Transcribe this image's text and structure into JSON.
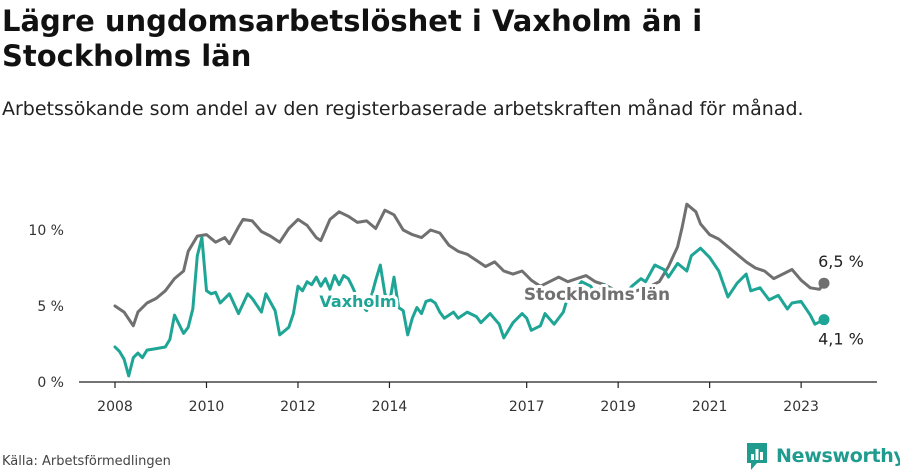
{
  "title": "Lägre ungdomsarbetslöshet i Vaxholm än i Stockholms län",
  "subtitle": "Arbetssökande som andel av den registerbaserade arbetskraften månad för månad.",
  "source": "Källa: Arbetsförmedlingen",
  "brand": {
    "name": "Newsworthy",
    "logo_icon": "bar-chart-logo-icon"
  },
  "colors": {
    "stockholm": "#707070",
    "vaxholm": "#1fa595",
    "brand": "#1f9c8e"
  },
  "chart_data": {
    "type": "line",
    "title": "Lägre ungdomsarbetslöshet i Vaxholm än i Stockholms län",
    "xlabel": "",
    "ylabel": "",
    "xlim": [
      2008,
      2024.5
    ],
    "ylim": [
      0,
      13
    ],
    "x_ticks": [
      2008,
      2010,
      2012,
      2014,
      2017,
      2019,
      2021,
      2023
    ],
    "x_tick_labels": [
      "2008",
      "2010",
      "2012",
      "2014",
      "2017",
      "2019",
      "2021",
      "2023"
    ],
    "y_ticks": [
      0,
      5,
      10
    ],
    "y_tick_labels": [
      "0 %",
      "5 %",
      "10 %"
    ],
    "grid": false,
    "series": [
      {
        "name": "Stockholms län",
        "label": "Stockholms län",
        "end_label": "6,5 %",
        "points": [
          [
            2008.0,
            5.0
          ],
          [
            2008.2,
            4.6
          ],
          [
            2008.4,
            3.7
          ],
          [
            2008.5,
            4.6
          ],
          [
            2008.7,
            5.2
          ],
          [
            2008.9,
            5.5
          ],
          [
            2009.1,
            6.0
          ],
          [
            2009.3,
            6.8
          ],
          [
            2009.5,
            7.3
          ],
          [
            2009.6,
            8.6
          ],
          [
            2009.8,
            9.6
          ],
          [
            2010.0,
            9.7
          ],
          [
            2010.2,
            9.2
          ],
          [
            2010.4,
            9.5
          ],
          [
            2010.5,
            9.1
          ],
          [
            2010.7,
            10.2
          ],
          [
            2010.8,
            10.7
          ],
          [
            2011.0,
            10.6
          ],
          [
            2011.2,
            9.9
          ],
          [
            2011.4,
            9.6
          ],
          [
            2011.6,
            9.2
          ],
          [
            2011.8,
            10.1
          ],
          [
            2012.0,
            10.7
          ],
          [
            2012.2,
            10.3
          ],
          [
            2012.4,
            9.5
          ],
          [
            2012.5,
            9.3
          ],
          [
            2012.7,
            10.7
          ],
          [
            2012.9,
            11.2
          ],
          [
            2013.1,
            10.9
          ],
          [
            2013.3,
            10.5
          ],
          [
            2013.5,
            10.6
          ],
          [
            2013.7,
            10.1
          ],
          [
            2013.9,
            11.3
          ],
          [
            2014.1,
            11.0
          ],
          [
            2014.3,
            10.0
          ],
          [
            2014.5,
            9.7
          ],
          [
            2014.7,
            9.5
          ],
          [
            2014.9,
            10.0
          ],
          [
            2015.1,
            9.8
          ],
          [
            2015.3,
            9.0
          ],
          [
            2015.5,
            8.6
          ],
          [
            2015.7,
            8.4
          ],
          [
            2015.9,
            8.0
          ],
          [
            2016.1,
            7.6
          ],
          [
            2016.3,
            7.9
          ],
          [
            2016.5,
            7.3
          ],
          [
            2016.7,
            7.1
          ],
          [
            2016.9,
            7.3
          ],
          [
            2017.1,
            6.7
          ],
          [
            2017.3,
            6.3
          ],
          [
            2017.5,
            6.6
          ],
          [
            2017.7,
            6.9
          ],
          [
            2017.9,
            6.6
          ],
          [
            2018.1,
            6.8
          ],
          [
            2018.3,
            7.0
          ],
          [
            2018.5,
            6.6
          ],
          [
            2018.7,
            6.4
          ],
          [
            2018.9,
            6.1
          ],
          [
            2019.1,
            6.0
          ],
          [
            2019.3,
            5.9
          ],
          [
            2019.5,
            6.1
          ],
          [
            2019.7,
            6.3
          ],
          [
            2019.9,
            6.6
          ],
          [
            2020.1,
            7.6
          ],
          [
            2020.3,
            8.9
          ],
          [
            2020.4,
            10.2
          ],
          [
            2020.5,
            11.7
          ],
          [
            2020.7,
            11.2
          ],
          [
            2020.8,
            10.4
          ],
          [
            2021.0,
            9.7
          ],
          [
            2021.2,
            9.4
          ],
          [
            2021.4,
            8.9
          ],
          [
            2021.6,
            8.4
          ],
          [
            2021.8,
            7.9
          ],
          [
            2022.0,
            7.5
          ],
          [
            2022.2,
            7.3
          ],
          [
            2022.4,
            6.8
          ],
          [
            2022.6,
            7.1
          ],
          [
            2022.8,
            7.4
          ],
          [
            2023.0,
            6.7
          ],
          [
            2023.2,
            6.2
          ],
          [
            2023.4,
            6.1
          ],
          [
            2023.5,
            6.5
          ]
        ]
      },
      {
        "name": "Vaxholm",
        "label": "Vaxholm",
        "end_label": "4,1 %",
        "points": [
          [
            2008.0,
            2.3
          ],
          [
            2008.1,
            2.0
          ],
          [
            2008.2,
            1.5
          ],
          [
            2008.3,
            0.4
          ],
          [
            2008.4,
            1.6
          ],
          [
            2008.5,
            1.9
          ],
          [
            2008.6,
            1.6
          ],
          [
            2008.7,
            2.1
          ],
          [
            2008.9,
            2.2
          ],
          [
            2009.1,
            2.3
          ],
          [
            2009.2,
            2.8
          ],
          [
            2009.3,
            4.4
          ],
          [
            2009.5,
            3.2
          ],
          [
            2009.6,
            3.6
          ],
          [
            2009.7,
            4.8
          ],
          [
            2009.8,
            8.3
          ],
          [
            2009.9,
            9.5
          ],
          [
            2010.0,
            6.0
          ],
          [
            2010.1,
            5.8
          ],
          [
            2010.2,
            5.9
          ],
          [
            2010.3,
            5.2
          ],
          [
            2010.5,
            5.8
          ],
          [
            2010.7,
            4.5
          ],
          [
            2010.9,
            5.8
          ],
          [
            2011.0,
            5.5
          ],
          [
            2011.2,
            4.6
          ],
          [
            2011.3,
            5.8
          ],
          [
            2011.5,
            4.7
          ],
          [
            2011.6,
            3.1
          ],
          [
            2011.8,
            3.6
          ],
          [
            2011.9,
            4.5
          ],
          [
            2012.0,
            6.3
          ],
          [
            2012.1,
            6.0
          ],
          [
            2012.2,
            6.6
          ],
          [
            2012.3,
            6.4
          ],
          [
            2012.4,
            6.9
          ],
          [
            2012.5,
            6.3
          ],
          [
            2012.6,
            6.8
          ],
          [
            2012.7,
            6.1
          ],
          [
            2012.8,
            7.0
          ],
          [
            2012.9,
            6.4
          ],
          [
            2013.0,
            7.0
          ],
          [
            2013.1,
            6.8
          ],
          [
            2013.2,
            6.2
          ],
          [
            2013.3,
            5.5
          ],
          [
            2013.4,
            5.0
          ],
          [
            2013.5,
            4.7
          ],
          [
            2013.6,
            5.6
          ],
          [
            2013.7,
            6.7
          ],
          [
            2013.8,
            7.7
          ],
          [
            2013.9,
            5.8
          ],
          [
            2014.0,
            5.2
          ],
          [
            2014.1,
            6.9
          ],
          [
            2014.2,
            4.9
          ],
          [
            2014.3,
            4.7
          ],
          [
            2014.4,
            3.1
          ],
          [
            2014.5,
            4.2
          ],
          [
            2014.6,
            4.9
          ],
          [
            2014.7,
            4.5
          ],
          [
            2014.8,
            5.3
          ],
          [
            2014.9,
            5.4
          ],
          [
            2015.0,
            5.2
          ],
          [
            2015.1,
            4.6
          ],
          [
            2015.2,
            4.2
          ],
          [
            2015.4,
            4.6
          ],
          [
            2015.5,
            4.2
          ],
          [
            2015.7,
            4.6
          ],
          [
            2015.9,
            4.3
          ],
          [
            2016.0,
            3.9
          ],
          [
            2016.2,
            4.5
          ],
          [
            2016.4,
            3.8
          ],
          [
            2016.5,
            2.9
          ],
          [
            2016.7,
            3.9
          ],
          [
            2016.9,
            4.5
          ],
          [
            2017.0,
            4.2
          ],
          [
            2017.1,
            3.4
          ],
          [
            2017.3,
            3.7
          ],
          [
            2017.4,
            4.5
          ],
          [
            2017.6,
            3.8
          ],
          [
            2017.8,
            4.6
          ],
          [
            2017.9,
            5.6
          ],
          [
            2018.0,
            5.8
          ],
          [
            2018.2,
            6.6
          ],
          [
            2018.4,
            6.3
          ],
          [
            2018.5,
            5.8
          ],
          [
            2018.7,
            6.4
          ],
          [
            2018.9,
            5.9
          ],
          [
            2019.1,
            5.6
          ],
          [
            2019.3,
            6.3
          ],
          [
            2019.5,
            6.8
          ],
          [
            2019.6,
            6.6
          ],
          [
            2019.8,
            7.7
          ],
          [
            2020.0,
            7.4
          ],
          [
            2020.1,
            6.9
          ],
          [
            2020.3,
            7.8
          ],
          [
            2020.5,
            7.3
          ],
          [
            2020.6,
            8.3
          ],
          [
            2020.8,
            8.8
          ],
          [
            2021.0,
            8.2
          ],
          [
            2021.2,
            7.3
          ],
          [
            2021.4,
            5.6
          ],
          [
            2021.6,
            6.5
          ],
          [
            2021.8,
            7.1
          ],
          [
            2021.9,
            6.0
          ],
          [
            2022.1,
            6.2
          ],
          [
            2022.3,
            5.4
          ],
          [
            2022.5,
            5.7
          ],
          [
            2022.7,
            4.8
          ],
          [
            2022.8,
            5.2
          ],
          [
            2023.0,
            5.3
          ],
          [
            2023.2,
            4.4
          ],
          [
            2023.3,
            3.8
          ],
          [
            2023.5,
            4.1
          ]
        ]
      }
    ]
  }
}
